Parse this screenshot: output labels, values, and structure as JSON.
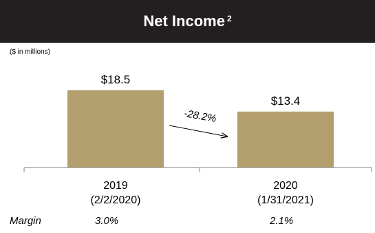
{
  "header": {
    "title": "Net Income",
    "superscript": "2"
  },
  "units_note": "($ in millions)",
  "chart_data": {
    "type": "bar",
    "categories": [
      "2019",
      "2020"
    ],
    "category_sublabels": [
      "(2/2/2020)",
      "(1/31/2021)"
    ],
    "values": [
      18.5,
      13.4
    ],
    "value_labels": [
      "$18.5",
      "$13.4"
    ],
    "bar_color": "#b39e6d",
    "change_annotation": "-28.2%",
    "ylim": [
      0,
      20
    ]
  },
  "margin_row": {
    "label": "Margin",
    "values": [
      "3.0%",
      "2.1%"
    ]
  }
}
